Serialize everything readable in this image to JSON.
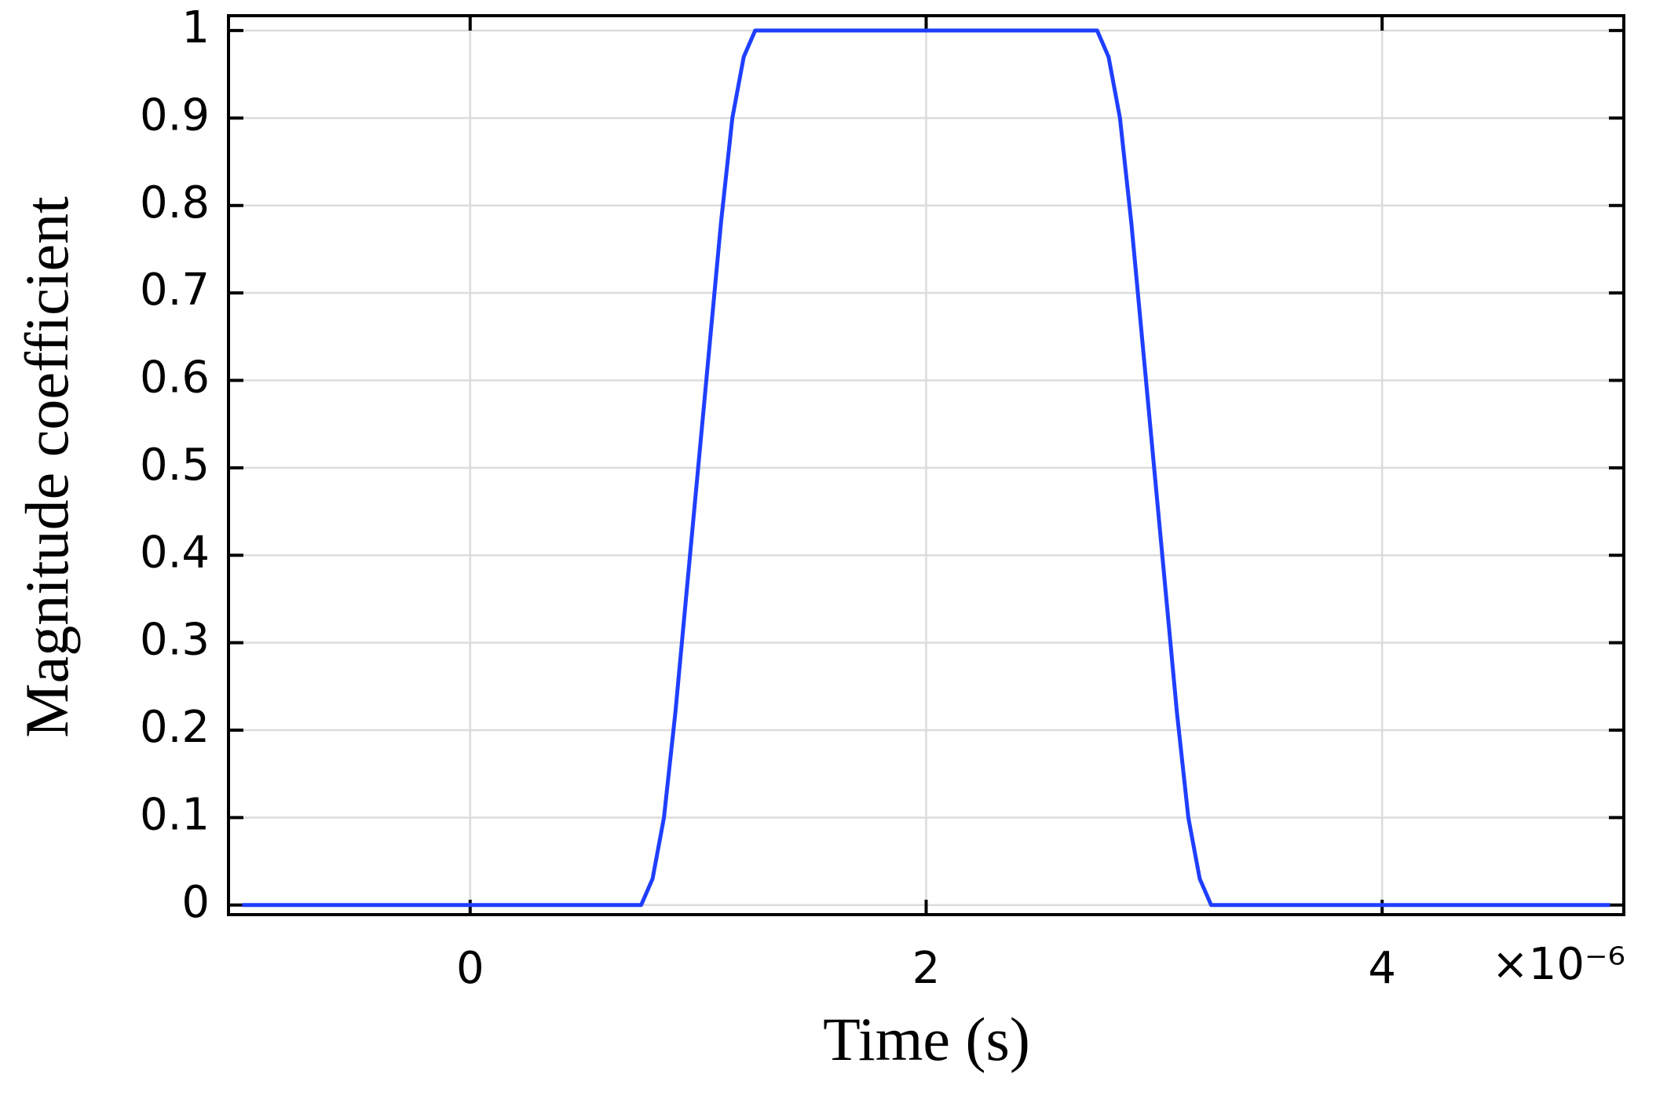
{
  "chart_data": {
    "type": "line",
    "x_label": "Time (s)",
    "y_label": "Magnitude coefficient",
    "x_multiplier": "×10⁻⁶",
    "x": [
      -1,
      0,
      0.5,
      0.75,
      0.8,
      0.85,
      0.9,
      0.95,
      1.0,
      1.05,
      1.1,
      1.15,
      1.2,
      1.25,
      2,
      2.75,
      2.8,
      2.85,
      2.9,
      2.95,
      3.0,
      3.05,
      3.1,
      3.15,
      3.2,
      3.25,
      4,
      5
    ],
    "series": [
      {
        "name": "Magnitude coefficient",
        "color": "#1f3fff",
        "values": [
          0,
          0,
          0,
          0,
          0.03,
          0.1,
          0.22,
          0.36,
          0.5,
          0.64,
          0.78,
          0.9,
          0.97,
          1,
          1,
          1,
          0.97,
          0.9,
          0.78,
          0.64,
          0.5,
          0.36,
          0.22,
          0.1,
          0.03,
          0,
          0,
          0
        ]
      }
    ],
    "xlim": [
      -1.06,
      5.06
    ],
    "ylim": [
      -0.011,
      1.017
    ],
    "xticks": [
      0,
      2,
      4
    ],
    "yticks": [
      0,
      0.1,
      0.2,
      0.3,
      0.4,
      0.5,
      0.6,
      0.7,
      0.8,
      0.9,
      1
    ],
    "grid": true
  }
}
